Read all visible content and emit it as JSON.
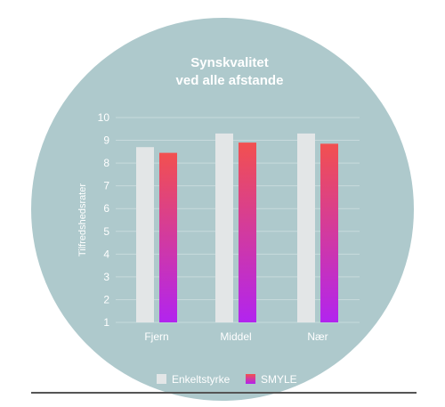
{
  "colors": {
    "background_circle": "#aec9cc",
    "grid": "#c7dadc",
    "bar_single": "#e3e6e7",
    "bar_smyle_top": "#f2504f",
    "bar_smyle_bottom": "#b224ef",
    "baseline": "#555555",
    "text": "#ffffff"
  },
  "chart_data": {
    "type": "bar",
    "title_lines": [
      "Synskvalitet",
      "ved alle afstande"
    ],
    "ylabel": "Tilfredshedsrater",
    "xlabel": "",
    "ylim": [
      1,
      10
    ],
    "yticks": [
      "1",
      "2",
      "3",
      "4",
      "5",
      "6",
      "7",
      "8",
      "9",
      "10"
    ],
    "grid": true,
    "legend_position": "bottom",
    "categories": [
      "Fjern",
      "Middel",
      "Nær"
    ],
    "series": [
      {
        "name": "Enkeltstyrke",
        "values": [
          8.7,
          9.3,
          9.3
        ]
      },
      {
        "name": "SMYLE",
        "values": [
          8.45,
          8.9,
          8.85
        ]
      }
    ]
  }
}
